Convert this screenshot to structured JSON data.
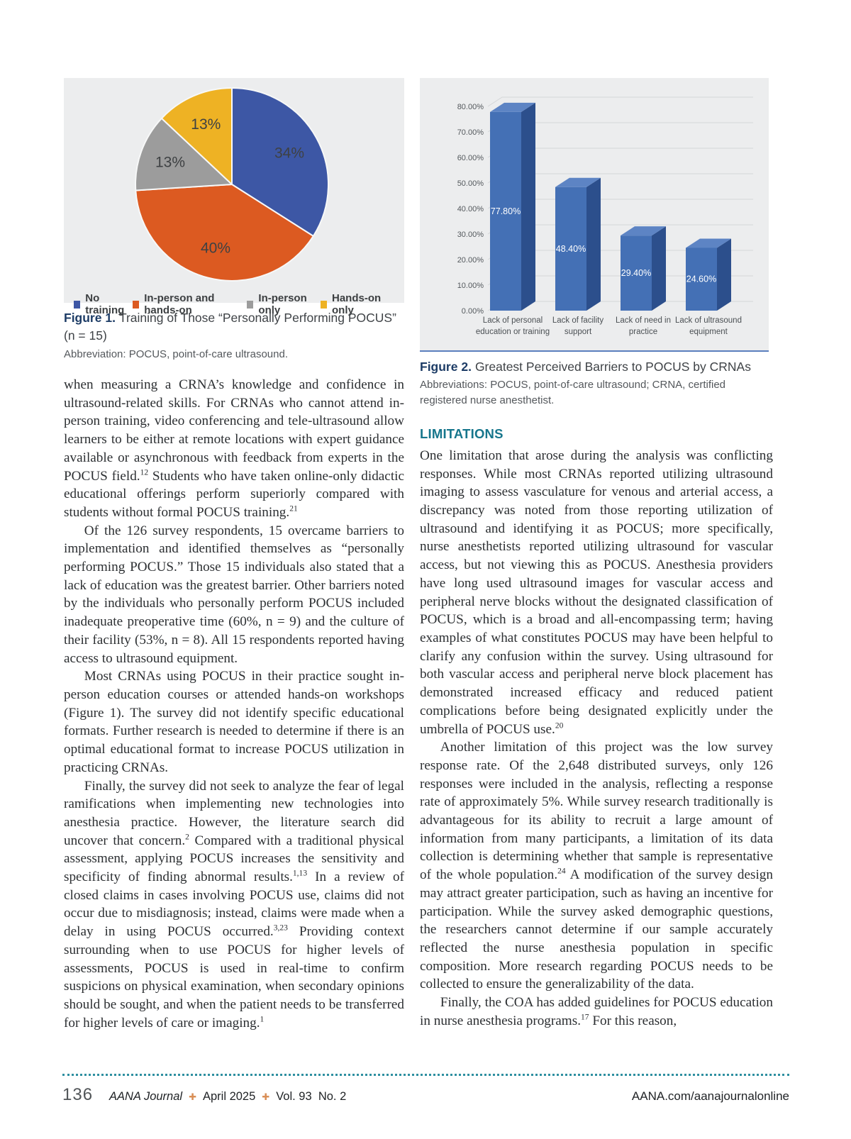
{
  "figure1": {
    "label": "Figure 1.",
    "caption": "Training of Those “Personally Performing POCUS” (n = 15)",
    "abbreviation": "Abbreviation: POCUS, point-of-care ultrasound."
  },
  "figure2": {
    "label": "Figure 2.",
    "caption": "Greatest Perceived Barriers to POCUS by CRNAs",
    "abbreviation": "Abbreviations: POCUS, point-of-care ultrasound; CRNA, certified registered nurse anesthetist."
  },
  "chart_data": [
    {
      "id": "pie-training",
      "type": "pie",
      "labels": [
        "No training",
        "In-person and hands-on",
        "In-person only",
        "Hands-on only"
      ],
      "values": [
        34,
        40,
        13,
        13
      ],
      "slice_labels": [
        "34%",
        "40%",
        "13%",
        "13%"
      ],
      "colors": [
        "#3d57a5",
        "#dc5a21",
        "#9c9c9c",
        "#eeb224"
      ],
      "start_angle_deg": 0,
      "direction": "clockwise",
      "legend_position": "bottom",
      "background": "#ecedee"
    },
    {
      "id": "bar-barriers",
      "type": "bar",
      "style": "3d",
      "categories": [
        "Lack of personal education or training",
        "Lack of facility support",
        "Lack of need in practice",
        "Lack of ultrasound equipment"
      ],
      "values": [
        77.8,
        48.4,
        29.4,
        24.6
      ],
      "bar_labels": [
        "77.80%",
        "48.40%",
        "29.40%",
        "24.60%"
      ],
      "yticks": [
        "0.00%",
        "10.00%",
        "20.00%",
        "30.00%",
        "40.00%",
        "50.00%",
        "60.00%",
        "70.00%",
        "80.00%"
      ],
      "ylim": [
        0,
        80
      ],
      "grid": true,
      "bar_color": "#4470b5",
      "bar_side_color": "#2c4f8c",
      "bar_top_color": "#5d84c4",
      "background": "#ecedee"
    }
  ],
  "left_column": {
    "paragraphs": [
      {
        "indent": false,
        "text": "when measuring a CRNA’s knowledge and confidence in ultrasound-related skills. For CRNAs who cannot attend in-person training, video conferencing and tele-ultrasound allow learners to be either at remote locations with expert guidance available or asynchronous with feedback from experts in the POCUS field.^{12} Students who have taken online-only didactic educational offerings perform superiorly compared with students without formal POCUS training.^{21}"
      },
      {
        "indent": true,
        "text": "Of the 126 survey respondents, 15 overcame barriers to implementation and identified themselves as “personally performing POCUS.” Those 15 individuals also stated that a lack of education was the greatest barrier. Other barriers noted by the individuals who personally perform POCUS included inadequate preoperative time (60%, n = 9) and the culture of their facility (53%, n = 8). All 15 respondents reported having access to ultrasound equipment."
      },
      {
        "indent": true,
        "text": "Most CRNAs using POCUS in their practice sought in-person education courses or attended hands-on workshops (Figure 1). The survey did not identify specific educational formats. Further research is needed to determine if there is an optimal educational format to increase POCUS utilization in practicing CRNAs."
      },
      {
        "indent": true,
        "text": "Finally, the survey did not seek to analyze the fear of legal ramifications when implementing new technologies into anesthesia practice. However, the literature search did uncover that concern.^{2} Compared with a traditional physical assessment, applying POCUS increases the sensitivity and specificity of finding abnormal results.^{1,13} In a review of closed claims in cases involving POCUS use, claims did not occur due to misdiagnosis; instead, claims were made when a delay in using POCUS occurred.^{3,23} Providing context surrounding when to use POCUS for higher levels of assessments, POCUS is used in real-time to confirm suspicions on physical examination, when secondary opinions should be sought, and when the patient needs to be transferred for higher levels of care or imaging.^{1}"
      }
    ]
  },
  "sections": {
    "limitations": {
      "heading": "LIMITATIONS",
      "heading_color": "#16768c",
      "paragraphs": [
        {
          "indent": false,
          "text": "One limitation that arose during the analysis was conflicting responses. While most CRNAs reported utilizing ultrasound imaging to assess vasculature for venous and arterial access, a discrepancy was noted from those reporting utilization of ultrasound and identifying it as POCUS; more specifically, nurse anesthetists reported utilizing ultrasound for vascular access, but not viewing this as POCUS. Anesthesia providers have long used ultrasound images for vascular access and peripheral nerve blocks without the designated classification of POCUS, which is a broad and all-encompassing term; having examples of what constitutes POCUS may have been helpful to clarify any confusion within the survey. Using ultrasound for both vascular access and peripheral nerve block placement has demonstrated increased efficacy and reduced patient complications before being designated explicitly under the umbrella of POCUS use.^{20}"
        },
        {
          "indent": true,
          "text": "Another limitation of this project was the low survey response rate. Of the 2,648 distributed surveys, only 126 responses were included in the analysis, reflecting a response rate of approximately 5%. While survey research traditionally is advantageous for its ability to recruit a large amount of information from many participants, a limitation of its data collection is determining whether that sample is representative of the whole population.^{24} A modification of the survey design may attract greater participation, such as having an incentive for participation. While the survey asked demographic questions, the researchers cannot determine if our sample accurately reflected the nurse anesthesia population in specific composition. More research regarding POCUS needs to be collected to ensure the generalizability of the data."
        },
        {
          "indent": true,
          "text": "Finally, the COA has added guidelines for POCUS education in nurse anesthesia programs.^{17} For this reason,"
        }
      ]
    }
  },
  "footer": {
    "page_number": "136",
    "journal": "AANA Journal",
    "issue_date": "April 2025",
    "volume": "Vol. 93  No. 2",
    "separator_glyph": "✚",
    "website": "AANA.com/aanajournalonline",
    "rule_color": "#2e8fa0",
    "accent_color": "#d98f57"
  }
}
